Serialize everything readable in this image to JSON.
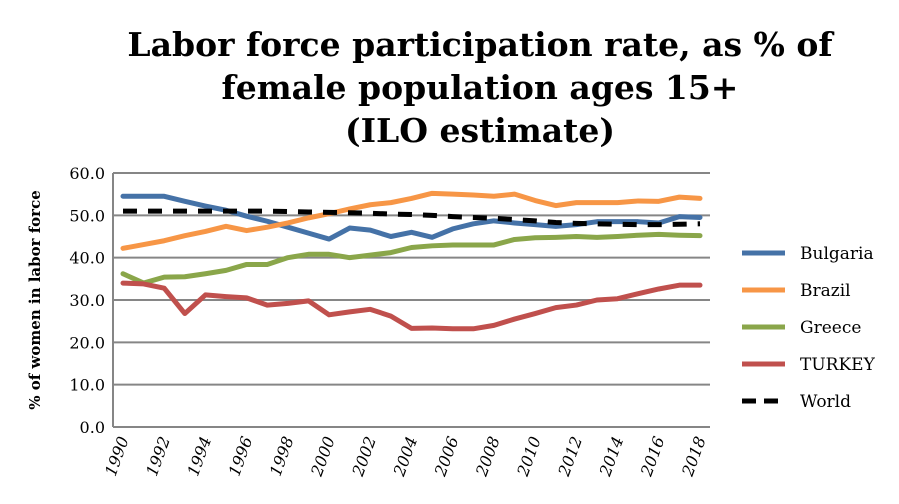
{
  "chart_data": {
    "type": "line",
    "title": [
      "Labor force participation rate, as % of",
      "female population ages 15+",
      "(ILO estimate)"
    ],
    "xlabel": "",
    "ylabel": "% of women in labor force",
    "ylim": [
      0,
      60
    ],
    "yticks": [
      "0.0",
      "10.0",
      "20.0",
      "30.0",
      "40.0",
      "50.0",
      "60.0"
    ],
    "xticks": [
      "1990",
      "1992",
      "1994",
      "1996",
      "1998",
      "2000",
      "2002",
      "2004",
      "2006",
      "2008",
      "2010",
      "2012",
      "2014",
      "2016",
      "2018"
    ],
    "x": [
      1990,
      1991,
      1992,
      1993,
      1994,
      1995,
      1996,
      1997,
      1998,
      1999,
      2000,
      2001,
      2002,
      2003,
      2004,
      2005,
      2006,
      2007,
      2008,
      2009,
      2010,
      2011,
      2012,
      2013,
      2014,
      2015,
      2016,
      2017,
      2018
    ],
    "grid": true,
    "legend": "right",
    "series": [
      {
        "name": "Bulgaria",
        "color": "#4572a7",
        "dash": false,
        "values": [
          54.5,
          54.5,
          54.5,
          53.3,
          52.2,
          51.2,
          49.8,
          48.6,
          47.2,
          45.8,
          44.4,
          47,
          46.5,
          45,
          46,
          44.8,
          46.8,
          48,
          48.7,
          48.2,
          47.8,
          47.4,
          47.8,
          48.5,
          48.5,
          48.5,
          48.2,
          49.7,
          49.5
        ]
      },
      {
        "name": "Brazil",
        "color": "#f79646",
        "dash": false,
        "values": [
          42.2,
          43.1,
          44,
          45.2,
          46.2,
          47.4,
          46.4,
          47.2,
          48.2,
          49.4,
          50.4,
          51.5,
          52.5,
          53,
          54,
          55.2,
          55,
          54.8,
          54.5,
          55,
          53.5,
          52.3,
          53,
          53,
          53,
          53.4,
          53.3,
          54.3,
          54
        ]
      },
      {
        "name": "Greece",
        "color": "#8aa64a",
        "dash": false,
        "values": [
          36.2,
          34,
          35.4,
          35.5,
          36.2,
          37,
          38.4,
          38.4,
          40,
          40.8,
          40.8,
          40,
          40.6,
          41.2,
          42.4,
          42.8,
          43,
          43,
          43,
          44.3,
          44.7,
          44.8,
          45,
          44.8,
          45,
          45.3,
          45.5,
          45.3,
          45.2
        ]
      },
      {
        "name": "TURKEY",
        "color": "#c0504d",
        "dash": false,
        "values": [
          34,
          33.8,
          32.8,
          26.8,
          31.2,
          30.8,
          30.5,
          28.8,
          29.2,
          29.8,
          26.5,
          27.2,
          27.8,
          26.2,
          23.3,
          23.4,
          23.2,
          23.2,
          24,
          25.5,
          26.8,
          28.2,
          28.8,
          30,
          30.3,
          31.5,
          32.6,
          33.5,
          33.5
        ]
      },
      {
        "name": "World",
        "color": "#000000",
        "dash": true,
        "values": [
          51,
          51,
          51,
          51,
          51,
          51,
          51,
          51,
          50.9,
          50.8,
          50.7,
          50.6,
          50.5,
          50.3,
          50.2,
          50,
          49.7,
          49.5,
          49.3,
          49,
          48.7,
          48.3,
          48.1,
          48,
          47.9,
          47.8,
          47.8,
          47.9,
          48
        ]
      }
    ]
  }
}
